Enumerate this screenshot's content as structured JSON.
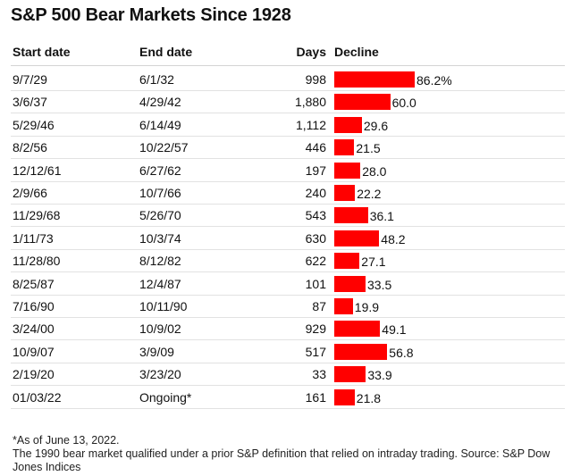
{
  "title": "S&P 500 Bear Markets Since 1928",
  "headers": {
    "start": "Start date",
    "end": "End date",
    "days": "Days",
    "decline": "Decline"
  },
  "footnotes": [
    "*As of June 13, 2022.",
    "The 1990 bear market qualified under a prior S&P definition that relied on intraday trading. Source: S&P Dow Jones Indices"
  ],
  "chart_data": {
    "type": "table",
    "title": "S&P 500 Bear Markets Since 1928",
    "columns": [
      "Start date",
      "End date",
      "Days",
      "Decline"
    ],
    "bar_color": "#ff0000",
    "rows": [
      {
        "start": "9/7/29",
        "end": "6/1/32",
        "days": "998",
        "decline": 86.2,
        "decline_label": "86.2%"
      },
      {
        "start": "3/6/37",
        "end": "4/29/42",
        "days": "1,880",
        "decline": 60.0,
        "decline_label": "60.0"
      },
      {
        "start": "5/29/46",
        "end": "6/14/49",
        "days": "1,112",
        "decline": 29.6,
        "decline_label": "29.6"
      },
      {
        "start": "8/2/56",
        "end": "10/22/57",
        "days": "446",
        "decline": 21.5,
        "decline_label": "21.5"
      },
      {
        "start": "12/12/61",
        "end": "6/27/62",
        "days": "197",
        "decline": 28.0,
        "decline_label": "28.0"
      },
      {
        "start": "2/9/66",
        "end": "10/7/66",
        "days": "240",
        "decline": 22.2,
        "decline_label": "22.2"
      },
      {
        "start": "11/29/68",
        "end": "5/26/70",
        "days": "543",
        "decline": 36.1,
        "decline_label": "36.1"
      },
      {
        "start": "1/11/73",
        "end": "10/3/74",
        "days": "630",
        "decline": 48.2,
        "decline_label": "48.2"
      },
      {
        "start": "11/28/80",
        "end": "8/12/82",
        "days": "622",
        "decline": 27.1,
        "decline_label": "27.1"
      },
      {
        "start": "8/25/87",
        "end": "12/4/87",
        "days": "101",
        "decline": 33.5,
        "decline_label": "33.5"
      },
      {
        "start": "7/16/90",
        "end": "10/11/90",
        "days": "87",
        "decline": 19.9,
        "decline_label": "19.9"
      },
      {
        "start": "3/24/00",
        "end": "10/9/02",
        "days": "929",
        "decline": 49.1,
        "decline_label": "49.1"
      },
      {
        "start": "10/9/07",
        "end": "3/9/09",
        "days": "517",
        "decline": 56.8,
        "decline_label": "56.8"
      },
      {
        "start": "2/19/20",
        "end": "3/23/20",
        "days": "33",
        "decline": 33.9,
        "decline_label": "33.9"
      },
      {
        "start": "01/03/22",
        "end": "Ongoing*",
        "days": "161",
        "decline": 21.8,
        "decline_label": "21.8"
      }
    ]
  }
}
